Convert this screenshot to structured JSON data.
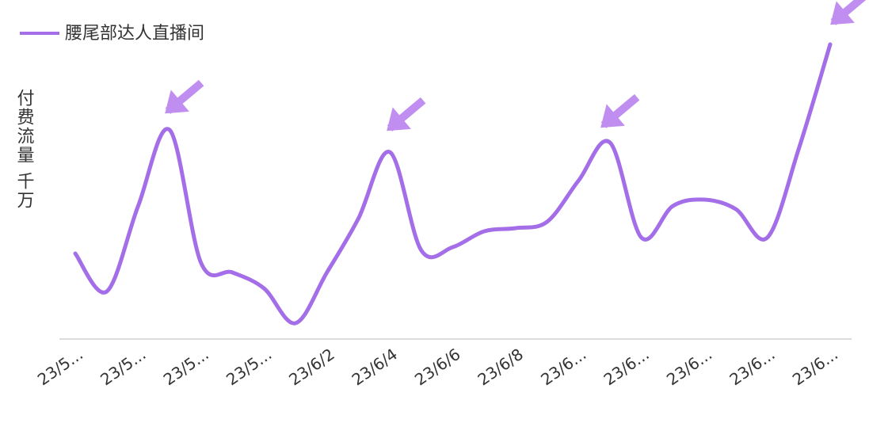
{
  "chart_data": {
    "type": "line",
    "legend_position": "top-left",
    "y_label": "付费流量 千万",
    "categories": [
      "23/5...",
      null,
      "23/5...",
      null,
      "23/5...",
      null,
      "23/5...",
      null,
      "23/6/2",
      null,
      "23/6/4",
      null,
      "23/6/6",
      null,
      "23/6/8",
      null,
      "23/6...",
      null,
      "23/6...",
      null,
      "23/6...",
      null,
      "23/6...",
      null,
      "23/6..."
    ],
    "series": [
      {
        "name": "腰尾部达人直播间",
        "color": "#a46ee8",
        "values": [
          27,
          15,
          42,
          66,
          24,
          21,
          16,
          5,
          21,
          38,
          59,
          28,
          29,
          34,
          35,
          37,
          50,
          62,
          32,
          42,
          44,
          41,
          32,
          60,
          93
        ]
      }
    ],
    "ylim": [
      0,
      100
    ]
  }
}
